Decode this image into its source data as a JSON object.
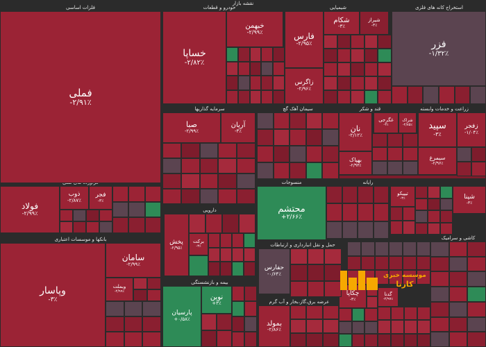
{
  "colors": {
    "background": "#2b2b2b",
    "loss": "#9b2335",
    "loss_alt": "#8a1f30",
    "neutral": "#5b4450",
    "gain": "#2e8b57",
    "logo": "#f6a800"
  },
  "sections": [
    {
      "id": "metals",
      "label": "فلزات اساسی"
    },
    {
      "id": "chemical",
      "label": "محصولات شیمیایی"
    },
    {
      "id": "auto",
      "label": "خودرو و قطعات"
    },
    {
      "id": "map_label",
      "label": "نقشه بازار"
    },
    {
      "id": "petro",
      "label": "شیمیایی"
    },
    {
      "id": "extract",
      "label": "استخراج کانه های فلزی"
    },
    {
      "id": "bank",
      "label": "بانکها و موسسات اعتباری"
    },
    {
      "id": "cement",
      "label": "سیمان آهک گچ"
    },
    {
      "id": "sugar",
      "label": "قند و شکر"
    },
    {
      "id": "trans",
      "label": "زراعت و خدمات وابسته"
    },
    {
      "id": "invest",
      "label": "سرمایه گذاریها"
    },
    {
      "id": "oil",
      "label": "فراورده های نفتی"
    },
    {
      "id": "pharma",
      "label": "دارویی"
    },
    {
      "id": "textile",
      "label": "منسوجات"
    },
    {
      "id": "insure",
      "label": "بیمه و بازنشستگی"
    },
    {
      "id": "misc",
      "label": "حمل و نقل انبارداری و ارتباطات"
    },
    {
      "id": "retail",
      "label": "عرضه برق،گاز،بخار و آب گرم"
    },
    {
      "id": "tile",
      "label": "کاشی و سرامیک"
    },
    {
      "id": "tech",
      "label": "رایانه"
    }
  ],
  "tiles": [
    {
      "id": "fameli",
      "name": "فملی",
      "change": "-۲/۹۱٪",
      "size": "xl"
    },
    {
      "id": "khesapa",
      "name": "خساپا",
      "change": "-۲/۸۲٪",
      "size": "l"
    },
    {
      "id": "khbahman",
      "name": "خبهمن",
      "change": "-۲/۹۹٪",
      "size": "s"
    },
    {
      "id": "fars",
      "name": "فارس",
      "change": "-۲/۹۵٪",
      "size": "m"
    },
    {
      "id": "shekam",
      "name": "شکام",
      "change": "-۳٪",
      "size": "s"
    },
    {
      "id": "shiraz",
      "name": "شیراز",
      "change": "-۳٪",
      "size": "xs"
    },
    {
      "id": "zagros",
      "name": "زاگرس",
      "change": "-۲/۹۶٪",
      "size": "s"
    },
    {
      "id": "fazar",
      "name": "فزر",
      "change": "-۱/۳۲٪",
      "size": "m"
    },
    {
      "id": "sepid",
      "name": "سپید",
      "change": "-۳٪",
      "size": "m"
    },
    {
      "id": "zafjar",
      "name": "زفجر",
      "change": "-۱/۰۴٪",
      "size": "s"
    },
    {
      "id": "foolad",
      "name": "فولاد",
      "change": "-۲/۹۹٪",
      "size": "m"
    },
    {
      "id": "zob",
      "name": "ذوب",
      "change": "-۲/۸۷٪",
      "size": "s"
    },
    {
      "id": "fajr",
      "name": "فجر",
      "change": "-۳٪",
      "size": "s"
    },
    {
      "id": "saba",
      "name": "صبا",
      "change": "-۲/۹۹٪",
      "size": "s"
    },
    {
      "id": "arian",
      "name": "آریان",
      "change": "-۳٪",
      "size": "s"
    },
    {
      "id": "nan",
      "name": "نان",
      "change": "-۲/۱۲٪",
      "size": "s"
    },
    {
      "id": "vebmellat",
      "name": "وبملت",
      "change": "-۲/۹۹٪",
      "size": "xs"
    },
    {
      "id": "mohtasham",
      "name": "محتشم",
      "change": "+۲/۶۶٪",
      "size": "l"
    },
    {
      "id": "saman",
      "name": "سامان",
      "change": "-۲/۹۹٪",
      "size": "m"
    },
    {
      "id": "vepasar",
      "name": "وپاسار",
      "change": "-۳٪",
      "size": "l"
    },
    {
      "id": "pakhsh",
      "name": "پخش",
      "change": "-۲/۹۵٪",
      "size": "s"
    },
    {
      "id": "barkat",
      "name": "برکت",
      "change": "-۳٪",
      "size": "xs"
    },
    {
      "id": "hafars",
      "name": "حفارس",
      "change": "-۰/۶۴٪",
      "size": "s"
    },
    {
      "id": "novin",
      "name": "نوین",
      "change": "+۳٪",
      "size": "s"
    },
    {
      "id": "parsian",
      "name": "پارسیان",
      "change": "+۰/۵۸٪",
      "size": "s"
    },
    {
      "id": "bemolad",
      "name": "بمولد",
      "change": "-۲/۸۶٪",
      "size": "s"
    },
    {
      "id": "chekapa",
      "name": "چکاپا",
      "change": "-۳٪",
      "size": "s"
    },
    {
      "id": "ghadna",
      "name": "گدنا",
      "change": "-۲/۹۷٪",
      "size": "xs"
    },
    {
      "id": "kharak",
      "name": "شراک",
      "change": "-۲/۸۵٪",
      "size": "xs"
    },
    {
      "id": "ghogh",
      "name": "غگرجی",
      "change": "-۳٪",
      "size": "xs"
    },
    {
      "id": "bahpak",
      "name": "بهپاک",
      "change": "-۲/۹۳٪",
      "size": "xs"
    },
    {
      "id": "sisat",
      "name": "سیمرغ",
      "change": "-۲/۹۶٪",
      "size": "xs"
    },
    {
      "id": "shepna",
      "name": "شپنا",
      "change": "-۳٪",
      "size": "xs"
    },
    {
      "id": "tipico",
      "name": "تیپیکو",
      "change": "-۳٪",
      "size": "xs"
    }
  ],
  "logo": {
    "brand": "کارنا",
    "line1": "موسسه خبری",
    "line2": "کارنا"
  }
}
